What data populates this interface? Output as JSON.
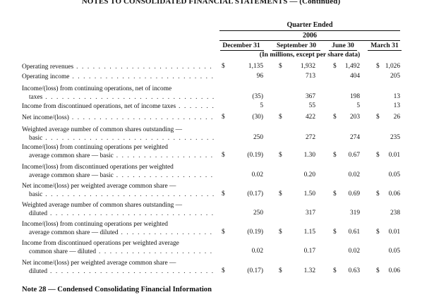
{
  "page_title": "NOTES TO CONSOLIDATED FINANCIAL STATEMENTS — (Continued)",
  "header": {
    "period": "Quarter Ended",
    "year": "2006",
    "columns": [
      "December 31",
      "September 30",
      "June 30",
      "March 31"
    ],
    "units": "(In millions, except per share data)"
  },
  "rows": [
    {
      "l1": "Operating revenues",
      "l2": "",
      "dollar": true,
      "v": [
        "1,135",
        "1,932",
        "1,492",
        "1,026"
      ]
    },
    {
      "l1": "Operating income",
      "l2": "",
      "dollar": false,
      "v": [
        "96",
        "713",
        "404",
        "205"
      ]
    },
    {
      "l1": "Income/(loss) from continuing operations, net of income",
      "l2": "taxes",
      "dollar": false,
      "v": [
        "(35)",
        "367",
        "198",
        "13"
      ]
    },
    {
      "l1": "Income from discontinued operations, net of income taxes",
      "l2": "",
      "dollar": false,
      "v": [
        "5",
        "55",
        "5",
        "13"
      ]
    },
    {
      "l1": "Net income/(loss)",
      "l2": "",
      "dollar": true,
      "v": [
        "(30)",
        "422",
        "203",
        "26"
      ]
    },
    {
      "l1": "Weighted average number of common shares outstanding —",
      "l2": "basic",
      "dollar": false,
      "v": [
        "250",
        "272",
        "274",
        "235"
      ]
    },
    {
      "l1": "Income/(loss) from continuing operations per weighted",
      "l2": "average common share — basic",
      "dollar": true,
      "v": [
        "(0.19)",
        "1.30",
        "0.67",
        "0.01"
      ]
    },
    {
      "l1": "Income/(loss) from discontinued operations per weighted",
      "l2": "average common share — basic",
      "dollar": false,
      "v": [
        "0.02",
        "0.20",
        "0.02",
        "0.05"
      ]
    },
    {
      "l1": "Net income/(loss) per weighted average common share —",
      "l2": "basic",
      "dollar": true,
      "v": [
        "(0.17)",
        "1.50",
        "0.69",
        "0.06"
      ]
    },
    {
      "l1": "Weighted average number of common shares outstanding —",
      "l2": "diluted",
      "dollar": false,
      "v": [
        "250",
        "317",
        "319",
        "238"
      ]
    },
    {
      "l1": "Income/(loss) from continuing operations per weighted",
      "l2": "average common share — diluted",
      "dollar": true,
      "v": [
        "(0.19)",
        "1.15",
        "0.61",
        "0.01"
      ]
    },
    {
      "l1": "Income from discontinued operations per weighted average",
      "l2": "common share — diluted",
      "dollar": false,
      "v": [
        "0.02",
        "0.17",
        "0.02",
        "0.05"
      ]
    },
    {
      "l1": "Net income/(loss) per weighted average common share —",
      "l2": "diluted",
      "dollar": true,
      "v": [
        "(0.17)",
        "1.32",
        "0.63",
        "0.06"
      ]
    }
  ],
  "currency_symbol": "$",
  "note_title": "Note 28 — Condensed Consolidating Financial Information"
}
